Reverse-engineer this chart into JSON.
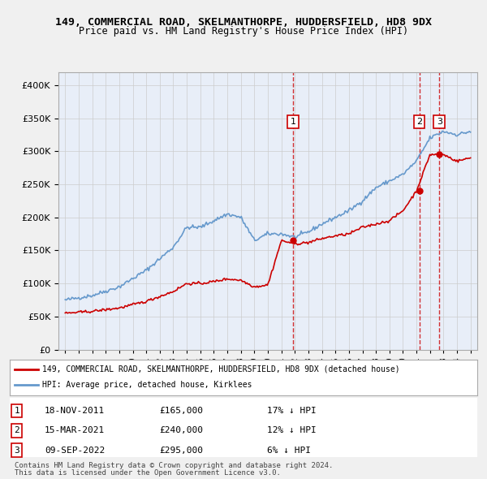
{
  "title1": "149, COMMERCIAL ROAD, SKELMANTHORPE, HUDDERSFIELD, HD8 9DX",
  "title2": "Price paid vs. HM Land Registry's House Price Index (HPI)",
  "legend_line1": "149, COMMERCIAL ROAD, SKELMANTHORPE, HUDDERSFIELD, HD8 9DX (detached house)",
  "legend_line2": "HPI: Average price, detached house, Kirklees",
  "footer1": "Contains HM Land Registry data © Crown copyright and database right 2024.",
  "footer2": "This data is licensed under the Open Government Licence v3.0.",
  "sale_color": "#cc0000",
  "hpi_color": "#6699cc",
  "background_color": "#e8eef8",
  "plot_bg_color": "#ffffff",
  "grid_color": "#cccccc",
  "annotation_box_color": "#cc0000",
  "ylim": [
    0,
    420000
  ],
  "yticks": [
    0,
    50000,
    100000,
    150000,
    200000,
    250000,
    300000,
    350000,
    400000
  ],
  "sale_points": [
    {
      "year": 2011.88,
      "price": 165000,
      "label": "1"
    },
    {
      "year": 2021.21,
      "price": 240000,
      "label": "2"
    },
    {
      "year": 2022.69,
      "price": 295000,
      "label": "3"
    }
  ],
  "table_rows": [
    {
      "label": "1",
      "date": "18-NOV-2011",
      "price": "£165,000",
      "hpi": "17% ↓ HPI"
    },
    {
      "label": "2",
      "date": "15-MAR-2021",
      "price": "£240,000",
      "hpi": "12% ↓ HPI"
    },
    {
      "label": "3",
      "date": "09-SEP-2022",
      "price": "£295,000",
      "hpi": "6% ↓ HPI"
    }
  ]
}
